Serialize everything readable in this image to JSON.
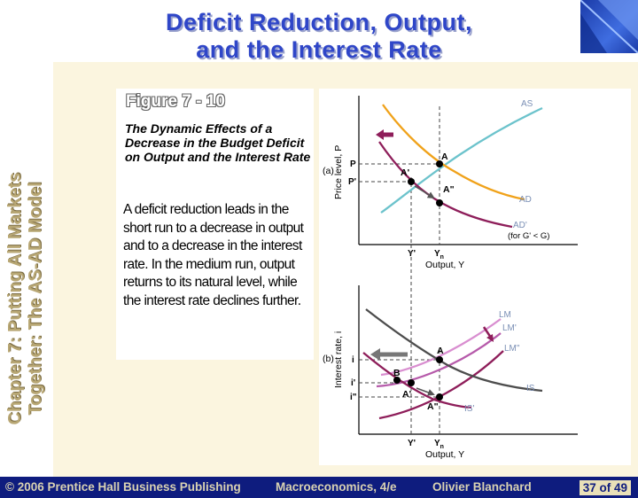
{
  "slide": {
    "title_line1": "Deficit Reduction, Output,",
    "title_line2": "and the Interest Rate",
    "sidebar_line1": "Chapter 7: Putting All Markets",
    "sidebar_line2": "Together: The AS-AD Model",
    "figure_label": "Figure 7 - 10",
    "figure_caption": "The Dynamic Effects of a Decrease in the Budget Deficit on Output and the Interest Rate",
    "body_text": "A deficit reduction leads in the short run to a decrease in output and to a decrease in the interest rate.  In the medium run, output returns to its natural level, while the interest rate declines further."
  },
  "footer": {
    "publisher": "© 2006 Prentice Hall Business Publishing",
    "book": "Macroeconomics, 4/e",
    "author": "Olivier Blanchard",
    "page": "37 of 49"
  },
  "diagram": {
    "panel_a": {
      "tag": "(a)",
      "ylabel": "Price level, P",
      "xlabel": "Output, Y",
      "curves": {
        "as": "AS",
        "ad": "AD",
        "ad_prime": "AD'",
        "ad_note": "(for G' < G)"
      },
      "points": {
        "a": "A",
        "a_prime": "A'",
        "a_dprime": "A\""
      },
      "ticks": {
        "p": "P",
        "p_prime": "P'",
        "y_prime": "Y'",
        "yn": "Y",
        "yn_sub": "n"
      }
    },
    "panel_b": {
      "tag": "(b)",
      "ylabel": "Interest rate, i",
      "xlabel": "Output, Y",
      "curves": {
        "lm": "LM",
        "lm_prime": "LM'",
        "lm_dprime": "LM\"",
        "is": "IS",
        "is_prime": "IS'"
      },
      "points": {
        "a": "A",
        "b": "B",
        "a_prime": "A'",
        "a_dprime": "A\""
      },
      "ticks": {
        "i": "i",
        "i_prime": "i'",
        "i_dprime": "i\"",
        "y_prime": "Y'",
        "yn": "Y",
        "yn_sub": "n"
      }
    },
    "colors": {
      "as": "#6cc3cc",
      "ad": "#f0a21a",
      "ad_prime": "#8e1e5a",
      "lm": "#d98ed0",
      "lm_prime": "#b65aaa",
      "lm_dprime": "#8e1e5a",
      "is": "#4d4d4d",
      "is_prime": "#8e1e5a",
      "curve_label": "#7a8fb5"
    }
  }
}
